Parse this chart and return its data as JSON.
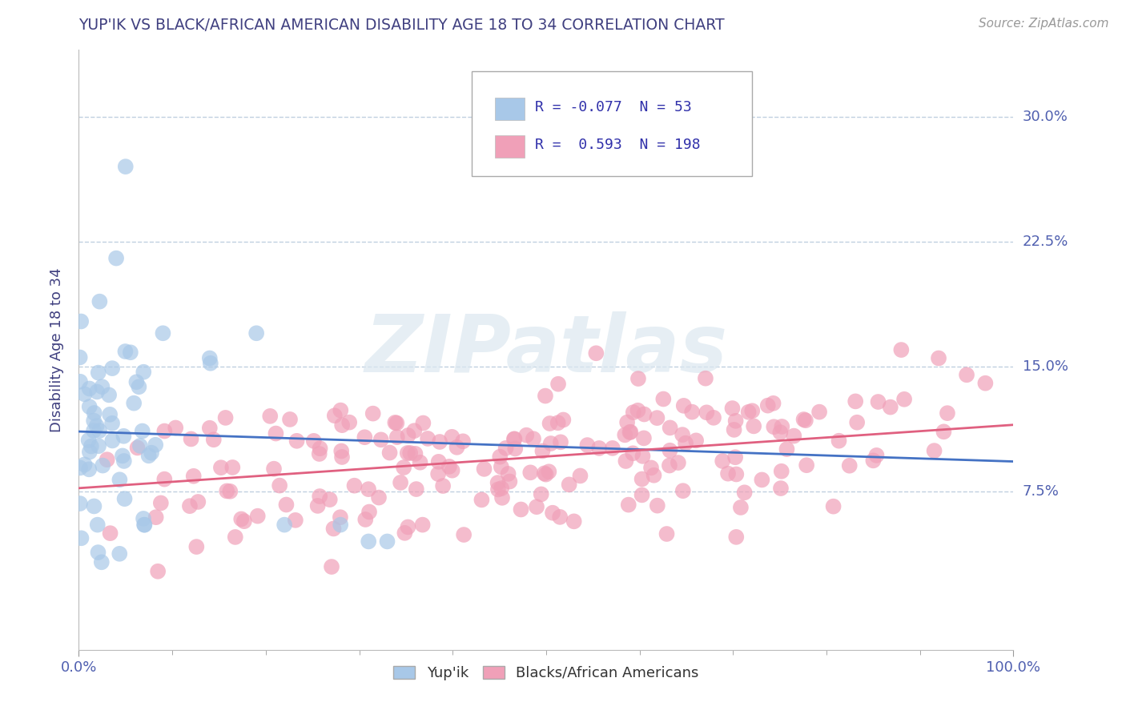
{
  "title": "YUP'IK VS BLACK/AFRICAN AMERICAN DISABILITY AGE 18 TO 34 CORRELATION CHART",
  "source_text": "Source: ZipAtlas.com",
  "ylabel": "Disability Age 18 to 34",
  "xlim": [
    0,
    1.0
  ],
  "ylim": [
    -0.02,
    0.34
  ],
  "yticks": [
    0.075,
    0.15,
    0.225,
    0.3
  ],
  "ytick_labels": [
    "7.5%",
    "15.0%",
    "22.5%",
    "30.0%"
  ],
  "xtick_labels": [
    "0.0%",
    "100.0%"
  ],
  "legend_r1": "-0.077",
  "legend_n1": "53",
  "legend_r2": "0.593",
  "legend_n2": "198",
  "color_blue": "#a8c8e8",
  "color_pink": "#f0a0b8",
  "color_blue_line": "#4472c4",
  "color_pink_line": "#e06080",
  "color_title": "#404080",
  "color_ylabel": "#404080",
  "color_tick": "#5060b0",
  "watermark_color": "#dce8f0",
  "background_color": "#ffffff",
  "grid_color": "#c0d0e0",
  "blue_intercept": 0.111,
  "blue_slope": -0.018,
  "pink_intercept": 0.077,
  "pink_slope": 0.038
}
